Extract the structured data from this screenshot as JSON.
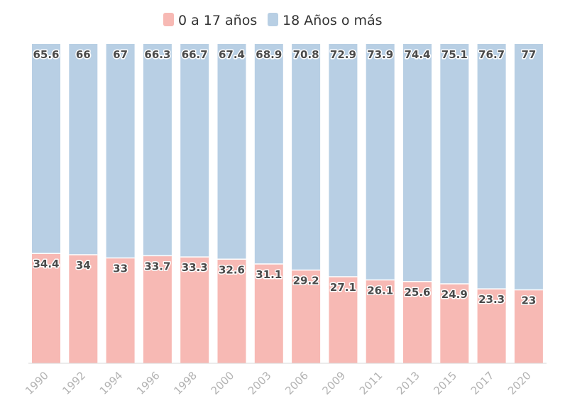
{
  "colors": {
    "series_young": "#f7b9b4",
    "series_adult": "#b8cfe4",
    "baseline": "#d9d9d9",
    "tick_text": "#b3b3b3",
    "label_text": "#4a4a4a"
  },
  "chart_data": {
    "type": "bar",
    "stacked": true,
    "percent_stacked": true,
    "title": "",
    "xlabel": "",
    "ylabel": "",
    "ylim": [
      0,
      100
    ],
    "grid": false,
    "legend_position": "top-center",
    "categories": [
      "1990",
      "1992",
      "1994",
      "1996",
      "1998",
      "2000",
      "2003",
      "2006",
      "2009",
      "2011",
      "2013",
      "2015",
      "2017",
      "2020"
    ],
    "series": [
      {
        "name": "0 a 17 años",
        "color": "#f7b9b4",
        "values": [
          34.4,
          34,
          33,
          33.7,
          33.3,
          32.6,
          31.1,
          29.2,
          27.1,
          26.1,
          25.6,
          24.9,
          23.3,
          23
        ]
      },
      {
        "name": "18 Años o más",
        "color": "#b8cfe4",
        "values": [
          65.6,
          66,
          67,
          66.3,
          66.7,
          67.4,
          68.9,
          70.8,
          72.9,
          73.9,
          74.4,
          75.1,
          76.7,
          77
        ]
      }
    ]
  }
}
